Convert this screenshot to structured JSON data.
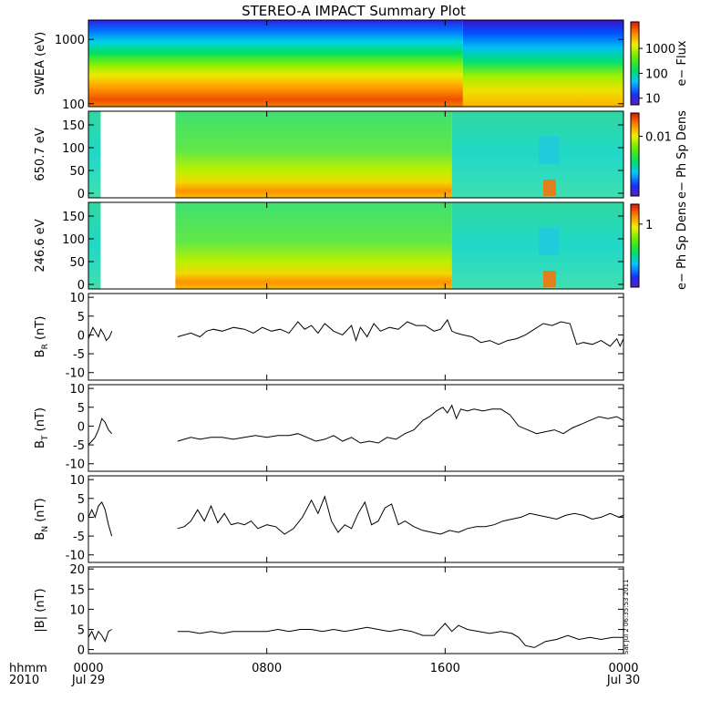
{
  "title": "STEREO-A IMPACT Summary Plot",
  "x_axis": {
    "label_line1": "hhmm",
    "label_line2": "2010",
    "ticks": [
      {
        "hour": 0,
        "line1": "0000",
        "line2": "Jul 29"
      },
      {
        "hour": 8,
        "line1": "0800",
        "line2": ""
      },
      {
        "hour": 16,
        "line1": "1600",
        "line2": ""
      },
      {
        "hour": 24,
        "line1": "0000",
        "line2": "Jul 30"
      }
    ],
    "range_hours": [
      0,
      24
    ]
  },
  "timestamp_text": "Sat Jul  2 06:35:53 2011",
  "spectrograms": [
    {
      "id": "swea",
      "ylabel": "SWEA (eV)",
      "scale": "log",
      "yticks": [
        {
          "value": 100,
          "label": "100"
        },
        {
          "value": 1000,
          "label": "1000"
        }
      ],
      "yrange": [
        90,
        2000
      ],
      "colorbar_label": "e− Flux",
      "colorbar_ticks": [
        {
          "frac": 0.08,
          "label": "10"
        },
        {
          "frac": 0.38,
          "label": "100"
        },
        {
          "frac": 0.68,
          "label": "1000"
        }
      ]
    },
    {
      "id": "pad650",
      "ylabel": "650.7 eV",
      "scale": "linear",
      "yticks": [
        {
          "value": 0,
          "label": "0"
        },
        {
          "value": 50,
          "label": "50"
        },
        {
          "value": 100,
          "label": "100"
        },
        {
          "value": 150,
          "label": "150"
        }
      ],
      "yrange": [
        -10,
        180
      ],
      "colorbar_label": "e− Ph Sp Dens",
      "colorbar_ticks": [
        {
          "frac": 0.72,
          "label": "0.01"
        }
      ],
      "data_gap_hours": [
        0.55,
        3.9
      ]
    },
    {
      "id": "pad246",
      "ylabel": "246.6 eV",
      "scale": "linear",
      "yticks": [
        {
          "value": 0,
          "label": "0"
        },
        {
          "value": 50,
          "label": "50"
        },
        {
          "value": 100,
          "label": "100"
        },
        {
          "value": 150,
          "label": "150"
        }
      ],
      "yrange": [
        -10,
        180
      ],
      "colorbar_label": "e− Ph Sp Dens",
      "colorbar_ticks": [
        {
          "frac": 0.76,
          "label": "1"
        }
      ],
      "data_gap_hours": [
        0.55,
        3.9
      ]
    }
  ],
  "chart_data": [
    {
      "type": "line",
      "id": "br",
      "ylabel_main": "B",
      "ylabel_sub": "R",
      "ylabel_unit": " (nT)",
      "ylim": [
        -12,
        11
      ],
      "yticks": [
        -10,
        -5,
        0,
        5,
        10
      ],
      "segments": [
        {
          "x": [
            0.0,
            0.1,
            0.2,
            0.3,
            0.45,
            0.55,
            0.7,
            0.8,
            0.95,
            1.05
          ],
          "y": [
            -1,
            0.5,
            2,
            1,
            -0.5,
            1.5,
            0,
            -1.5,
            -0.5,
            1
          ]
        },
        {
          "x": [
            4.0,
            4.3,
            4.6,
            5.0,
            5.3,
            5.6,
            6.0,
            6.5,
            7.0,
            7.4,
            7.8,
            8.2,
            8.6,
            9.0,
            9.4,
            9.7,
            10.0,
            10.3,
            10.6,
            11.0,
            11.4,
            11.8,
            12.0,
            12.2,
            12.5,
            12.8,
            13.1,
            13.5,
            13.9,
            14.3,
            14.7,
            15.1,
            15.5,
            15.8,
            16.1,
            16.3,
            16.5,
            16.8,
            17.2,
            17.6,
            18.0,
            18.4,
            18.8,
            19.2,
            19.6,
            20.0,
            20.4,
            20.8,
            21.2,
            21.6,
            21.9,
            22.2,
            22.6,
            23.0,
            23.4,
            23.7,
            23.85,
            24.0
          ],
          "y": [
            -0.5,
            0,
            0.5,
            -0.5,
            1,
            1.5,
            1,
            2,
            1.5,
            0.5,
            2,
            1,
            1.5,
            0.5,
            3.5,
            1.5,
            2.5,
            0.5,
            3,
            1,
            0,
            2.5,
            -1.5,
            2,
            -0.5,
            3,
            1,
            2,
            1.5,
            3.5,
            2.5,
            2.5,
            1,
            1.5,
            4,
            1,
            0.5,
            0,
            -0.5,
            -2,
            -1.5,
            -2.5,
            -1.5,
            -1,
            0,
            1.5,
            3,
            2.5,
            3.5,
            3,
            -2.5,
            -2,
            -2.5,
            -1.5,
            -3,
            -1,
            -3,
            -1
          ]
        }
      ]
    },
    {
      "type": "line",
      "id": "bt",
      "ylabel_main": "B",
      "ylabel_sub": "T",
      "ylabel_unit": " (nT)",
      "ylim": [
        -12,
        11
      ],
      "yticks": [
        -10,
        -5,
        0,
        5,
        10
      ],
      "segments": [
        {
          "x": [
            0.0,
            0.15,
            0.3,
            0.45,
            0.6,
            0.75,
            0.9,
            1.05
          ],
          "y": [
            -5,
            -4,
            -3,
            -1,
            2,
            1,
            -1,
            -2
          ]
        },
        {
          "x": [
            4.0,
            4.3,
            4.6,
            5.0,
            5.5,
            6.0,
            6.5,
            7.0,
            7.5,
            8.0,
            8.5,
            9.0,
            9.4,
            9.8,
            10.2,
            10.6,
            11.0,
            11.4,
            11.8,
            12.2,
            12.6,
            13.0,
            13.4,
            13.8,
            14.2,
            14.6,
            15.0,
            15.3,
            15.6,
            15.9,
            16.1,
            16.3,
            16.5,
            16.7,
            17.0,
            17.3,
            17.7,
            18.1,
            18.5,
            18.9,
            19.3,
            19.7,
            20.1,
            20.5,
            20.9,
            21.3,
            21.7,
            22.1,
            22.5,
            22.9,
            23.3,
            23.7,
            24.0
          ],
          "y": [
            -4,
            -3.5,
            -3,
            -3.5,
            -3,
            -3,
            -3.5,
            -3,
            -2.5,
            -3,
            -2.5,
            -2.5,
            -2,
            -3,
            -4,
            -3.5,
            -2.5,
            -4,
            -3,
            -4.5,
            -4,
            -4.5,
            -3,
            -3.5,
            -2,
            -1,
            1.5,
            2.5,
            4,
            5,
            3.5,
            5.5,
            2,
            4.5,
            4,
            4.5,
            4,
            4.5,
            4.5,
            3,
            0,
            -1,
            -2,
            -1.5,
            -1,
            -2,
            -0.5,
            0.5,
            1.5,
            2.5,
            2,
            2.5,
            1.5
          ]
        }
      ]
    },
    {
      "type": "line",
      "id": "bn",
      "ylabel_main": "B",
      "ylabel_sub": "N",
      "ylabel_unit": " (nT)",
      "ylim": [
        -12,
        11
      ],
      "yticks": [
        -10,
        -5,
        0,
        5,
        10
      ],
      "segments": [
        {
          "x": [
            0.0,
            0.15,
            0.3,
            0.45,
            0.6,
            0.75,
            0.9,
            1.05
          ],
          "y": [
            0,
            2,
            0,
            3,
            4,
            2,
            -2,
            -5
          ]
        },
        {
          "x": [
            4.0,
            4.3,
            4.6,
            4.9,
            5.2,
            5.5,
            5.8,
            6.1,
            6.4,
            6.7,
            7.0,
            7.3,
            7.6,
            8.0,
            8.4,
            8.8,
            9.2,
            9.6,
            10.0,
            10.3,
            10.6,
            10.9,
            11.2,
            11.5,
            11.8,
            12.1,
            12.4,
            12.7,
            13.0,
            13.3,
            13.6,
            13.9,
            14.2,
            14.6,
            15.0,
            15.4,
            15.8,
            16.2,
            16.6,
            17.0,
            17.4,
            17.8,
            18.2,
            18.6,
            19.0,
            19.4,
            19.8,
            20.2,
            20.6,
            21.0,
            21.4,
            21.8,
            22.2,
            22.6,
            23.0,
            23.4,
            23.8,
            24.0
          ],
          "y": [
            -3,
            -2.5,
            -1,
            2,
            -1,
            3,
            -1.5,
            1,
            -2,
            -1.5,
            -2,
            -1,
            -3,
            -2,
            -2.5,
            -4.5,
            -3,
            0,
            4.5,
            1,
            5.5,
            -1,
            -4,
            -2,
            -3,
            1,
            4,
            -2,
            -1,
            2.5,
            3.5,
            -2,
            -1,
            -2.5,
            -3.5,
            -4,
            -4.5,
            -3.5,
            -4,
            -3,
            -2.5,
            -2.5,
            -2,
            -1,
            -0.5,
            0,
            1,
            0.5,
            0,
            -0.5,
            0.5,
            1,
            0.5,
            -0.5,
            0,
            1,
            0,
            0.5
          ]
        }
      ]
    },
    {
      "type": "line",
      "id": "bmag",
      "ylabel_main": "|B|",
      "ylabel_sub": "",
      "ylabel_unit": " (nT)",
      "ylim": [
        -1,
        20.5
      ],
      "yticks": [
        0,
        5,
        10,
        15,
        20
      ],
      "segments": [
        {
          "x": [
            0.0,
            0.15,
            0.3,
            0.45,
            0.6,
            0.75,
            0.9,
            1.05
          ],
          "y": [
            3,
            4.5,
            2.5,
            4.5,
            3.5,
            2,
            4.5,
            5
          ]
        },
        {
          "x": [
            4.0,
            4.5,
            5.0,
            5.5,
            6.0,
            6.5,
            7.0,
            7.5,
            8.0,
            8.5,
            9.0,
            9.5,
            10.0,
            10.5,
            11.0,
            11.5,
            12.0,
            12.5,
            13.0,
            13.5,
            14.0,
            14.5,
            15.0,
            15.5,
            16.0,
            16.3,
            16.6,
            17.0,
            17.5,
            18.0,
            18.5,
            19.0,
            19.3,
            19.6,
            20.0,
            20.5,
            21.0,
            21.5,
            22.0,
            22.5,
            23.0,
            23.5,
            24.0
          ],
          "y": [
            4.5,
            4.5,
            4,
            4.5,
            4,
            4.5,
            4.5,
            4.5,
            4.5,
            5,
            4.5,
            5,
            5,
            4.5,
            5,
            4.5,
            5,
            5.5,
            5,
            4.5,
            5,
            4.5,
            3.5,
            3.5,
            6.5,
            4.5,
            6,
            5,
            4.5,
            4,
            4.5,
            4,
            3,
            1,
            0.5,
            2,
            2.5,
            3.5,
            2.5,
            3,
            2.5,
            3,
            3
          ]
        }
      ]
    }
  ]
}
